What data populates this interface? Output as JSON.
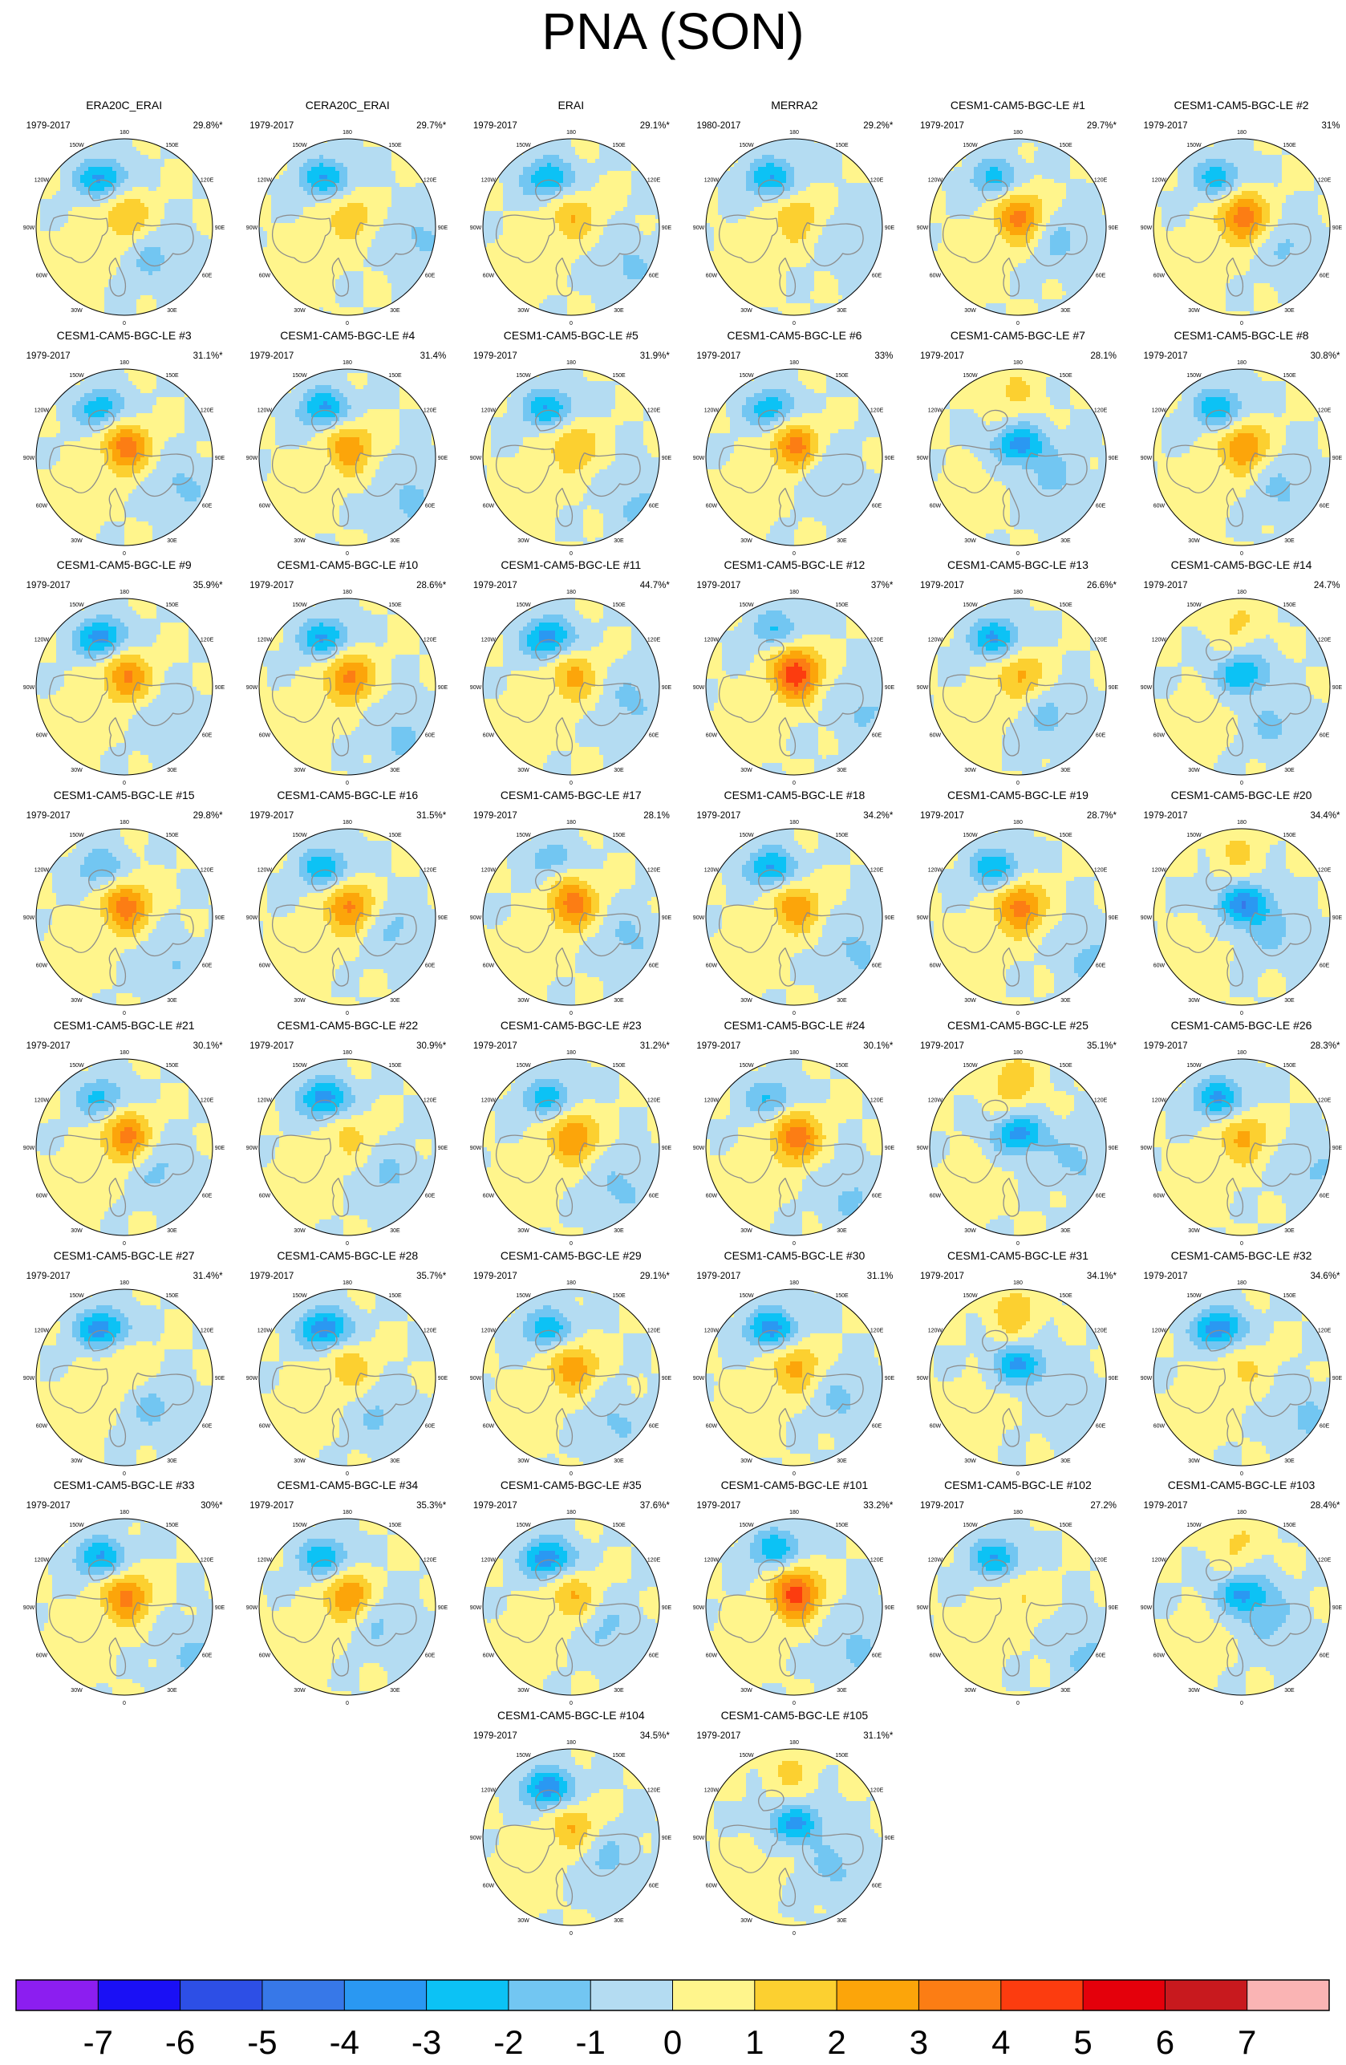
{
  "title": "PNA (SON)",
  "colors": {
    "land_outline": "#8c8c8c",
    "map_border": "#000000",
    "palette": [
      "#8c1ef0",
      "#1a10f5",
      "#2d4fe6",
      "#3778e8",
      "#2a98f2",
      "#0cc2f5",
      "#72c6f2",
      "#b4dcf2",
      "#fff58c",
      "#fcd030",
      "#fca50a",
      "#fc7d14",
      "#fc3c0f",
      "#e4000b",
      "#c8191e",
      "#fab4b4"
    ]
  },
  "map_labels": {
    "top": "180",
    "bottom": "0",
    "left": "90W",
    "right": "90E",
    "upper_left_outer": "120W",
    "upper_left_inner": "150W",
    "upper_right_inner": "150E",
    "upper_right_outer": "120E",
    "lower_left_outer": "60W",
    "lower_left_inner": "30W",
    "lower_right_inner": "30E",
    "lower_right_outer": "60E"
  },
  "chart_data": {
    "type": "heatmap",
    "title": "PNA (SON)",
    "projection": "north polar stereographic",
    "colorbar": {
      "levels": [
        -7,
        -6,
        -5,
        -4,
        -3,
        -2,
        -1,
        0,
        1,
        2,
        3,
        4,
        5,
        6,
        7
      ],
      "tick_labels": [
        "-7",
        "-6",
        "-5",
        "-4",
        "-3",
        "-2",
        "-1",
        "0",
        "1",
        "2",
        "3",
        "4",
        "5",
        "6",
        "7"
      ]
    },
    "panels": [
      {
        "title": "ERA20C_ERAI",
        "years": "1979-2017",
        "variance": "29.8%*",
        "pattern": "pna",
        "low": -3.2,
        "high": 2.2
      },
      {
        "title": "CERA20C_ERAI",
        "years": "1979-2017",
        "variance": "29.7%*",
        "pattern": "pna",
        "low": -3.0,
        "high": 1.8
      },
      {
        "title": "ERAI",
        "years": "1979-2017",
        "variance": "29.1%*",
        "pattern": "pna",
        "low": -3.1,
        "high": 2.0
      },
      {
        "title": "MERRA2",
        "years": "1980-2017",
        "variance": "29.2%*",
        "pattern": "pna",
        "low": -3.0,
        "high": 1.9
      },
      {
        "title": "CESM1-CAM5-BGC-LE #1",
        "years": "1979-2017",
        "variance": "29.7%*",
        "pattern": "pna",
        "low": -2.4,
        "high": 3.6
      },
      {
        "title": "CESM1-CAM5-BGC-LE #2",
        "years": "1979-2017",
        "variance": "31%",
        "pattern": "pna",
        "low": -2.6,
        "high": 3.8
      },
      {
        "title": "CESM1-CAM5-BGC-LE #3",
        "years": "1979-2017",
        "variance": "31.1%*",
        "pattern": "pna",
        "low": -2.8,
        "high": 3.6
      },
      {
        "title": "CESM1-CAM5-BGC-LE #4",
        "years": "1979-2017",
        "variance": "31.4%",
        "pattern": "pna",
        "low": -3.2,
        "high": 2.8
      },
      {
        "title": "CESM1-CAM5-BGC-LE #5",
        "years": "1979-2017",
        "variance": "31.9%*",
        "pattern": "pna",
        "low": -3.0,
        "high": 2.2
      },
      {
        "title": "CESM1-CAM5-BGC-LE #6",
        "years": "1979-2017",
        "variance": "33%",
        "pattern": "pna",
        "low": -2.8,
        "high": 3.8
      },
      {
        "title": "CESM1-CAM5-BGC-LE #7",
        "years": "1979-2017",
        "variance": "28.1%",
        "pattern": "central-low",
        "low": -3.4,
        "high": 1.2
      },
      {
        "title": "CESM1-CAM5-BGC-LE #8",
        "years": "1979-2017",
        "variance": "30.8%*",
        "pattern": "pna",
        "low": -3.0,
        "high": 3.2
      },
      {
        "title": "CESM1-CAM5-BGC-LE #9",
        "years": "1979-2017",
        "variance": "35.9%*",
        "pattern": "pna",
        "low": -3.6,
        "high": 3.2
      },
      {
        "title": "CESM1-CAM5-BGC-LE #10",
        "years": "1979-2017",
        "variance": "28.6%*",
        "pattern": "pna",
        "low": -3.2,
        "high": 3.4
      },
      {
        "title": "CESM1-CAM5-BGC-LE #11",
        "years": "1979-2017",
        "variance": "44.7%*",
        "pattern": "pna",
        "low": -3.6,
        "high": 2.4
      },
      {
        "title": "CESM1-CAM5-BGC-LE #12",
        "years": "1979-2017",
        "variance": "37%*",
        "pattern": "central-high",
        "low": -2.0,
        "high": 4.8
      },
      {
        "title": "CESM1-CAM5-BGC-LE #13",
        "years": "1979-2017",
        "variance": "26.6%*",
        "pattern": "pna",
        "low": -3.2,
        "high": 2.4
      },
      {
        "title": "CESM1-CAM5-BGC-LE #14",
        "years": "1979-2017",
        "variance": "24.7%",
        "pattern": "central-low",
        "low": -3.0,
        "high": 1.2
      },
      {
        "title": "CESM1-CAM5-BGC-LE #15",
        "years": "1979-2017",
        "variance": "29.8%*",
        "pattern": "pna",
        "low": -2.0,
        "high": 3.6
      },
      {
        "title": "CESM1-CAM5-BGC-LE #16",
        "years": "1979-2017",
        "variance": "31.5%*",
        "pattern": "pna",
        "low": -3.0,
        "high": 3.4
      },
      {
        "title": "CESM1-CAM5-BGC-LE #17",
        "years": "1979-2017",
        "variance": "28.1%",
        "pattern": "central-high",
        "low": -1.6,
        "high": 3.6
      },
      {
        "title": "CESM1-CAM5-BGC-LE #18",
        "years": "1979-2017",
        "variance": "34.2%*",
        "pattern": "pna",
        "low": -3.2,
        "high": 2.8
      },
      {
        "title": "CESM1-CAM5-BGC-LE #19",
        "years": "1979-2017",
        "variance": "28.7%*",
        "pattern": "pna",
        "low": -3.0,
        "high": 3.6
      },
      {
        "title": "CESM1-CAM5-BGC-LE #20",
        "years": "1979-2017",
        "variance": "34.4%*",
        "pattern": "central-low",
        "low": -3.6,
        "high": 1.2
      },
      {
        "title": "CESM1-CAM5-BGC-LE #21",
        "years": "1979-2017",
        "variance": "30.1%*",
        "pattern": "pna",
        "low": -2.4,
        "high": 3.6
      },
      {
        "title": "CESM1-CAM5-BGC-LE #22",
        "years": "1979-2017",
        "variance": "30.9%*",
        "pattern": "pna",
        "low": -3.6,
        "high": 1.4
      },
      {
        "title": "CESM1-CAM5-BGC-LE #23",
        "years": "1979-2017",
        "variance": "31.2%*",
        "pattern": "pna",
        "low": -2.6,
        "high": 3.2
      },
      {
        "title": "CESM1-CAM5-BGC-LE #24",
        "years": "1979-2017",
        "variance": "30.1%*",
        "pattern": "pna",
        "low": -2.2,
        "high": 3.8
      },
      {
        "title": "CESM1-CAM5-BGC-LE #25",
        "years": "1979-2017",
        "variance": "35.1%*",
        "pattern": "central-low",
        "low": -3.4,
        "high": 1.8
      },
      {
        "title": "CESM1-CAM5-BGC-LE #26",
        "years": "1979-2017",
        "variance": "28.3%*",
        "pattern": "pna",
        "low": -3.2,
        "high": 2.4
      },
      {
        "title": "CESM1-CAM5-BGC-LE #27",
        "years": "1979-2017",
        "variance": "31.4%*",
        "pattern": "pna",
        "low": -3.6,
        "high": 1.2
      },
      {
        "title": "CESM1-CAM5-BGC-LE #28",
        "years": "1979-2017",
        "variance": "35.7%*",
        "pattern": "pna",
        "low": -3.8,
        "high": 1.8
      },
      {
        "title": "CESM1-CAM5-BGC-LE #29",
        "years": "1979-2017",
        "variance": "29.1%*",
        "pattern": "pna",
        "low": -2.8,
        "high": 2.8
      },
      {
        "title": "CESM1-CAM5-BGC-LE #30",
        "years": "1979-2017",
        "variance": "31.1%",
        "pattern": "pna",
        "low": -3.6,
        "high": 2.4
      },
      {
        "title": "CESM1-CAM5-BGC-LE #31",
        "years": "1979-2017",
        "variance": "34.1%*",
        "pattern": "central-low",
        "low": -3.2,
        "high": 1.8
      },
      {
        "title": "CESM1-CAM5-BGC-LE #32",
        "years": "1979-2017",
        "variance": "34.6%*",
        "pattern": "pna",
        "low": -3.8,
        "high": 1.2
      },
      {
        "title": "CESM1-CAM5-BGC-LE #33",
        "years": "1979-2017",
        "variance": "30%*",
        "pattern": "pna",
        "low": -3.2,
        "high": 3.4
      },
      {
        "title": "CESM1-CAM5-BGC-LE #34",
        "years": "1979-2017",
        "variance": "35.3%*",
        "pattern": "pna",
        "low": -3.0,
        "high": 3.4
      },
      {
        "title": "CESM1-CAM5-BGC-LE #35",
        "years": "1979-2017",
        "variance": "37.6%*",
        "pattern": "pna",
        "low": -3.8,
        "high": 2.2
      },
      {
        "title": "CESM1-CAM5-BGC-LE #101",
        "years": "1979-2017",
        "variance": "33.2%*",
        "pattern": "central-high",
        "low": -2.8,
        "high": 4.6
      },
      {
        "title": "CESM1-CAM5-BGC-LE #102",
        "years": "1979-2017",
        "variance": "27.2%",
        "pattern": "pna",
        "low": -3.0,
        "high": 1.2
      },
      {
        "title": "CESM1-CAM5-BGC-LE #103",
        "years": "1979-2017",
        "variance": "28.4%*",
        "pattern": "central-low",
        "low": -3.0,
        "high": 1.2
      },
      {
        "title": "CESM1-CAM5-BGC-LE #104",
        "years": "1979-2017",
        "variance": "34.5%*",
        "pattern": "pna",
        "low": -3.8,
        "high": 2.2
      },
      {
        "title": "CESM1-CAM5-BGC-LE #105",
        "years": "1979-2017",
        "variance": "31.1%*",
        "pattern": "central-low",
        "low": -3.2,
        "high": 1.2
      }
    ]
  }
}
